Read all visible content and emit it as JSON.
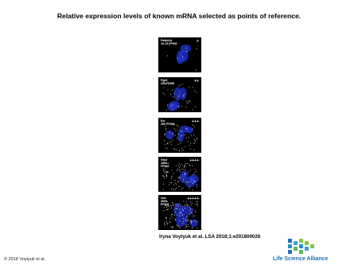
{
  "title": "Relative expression levels of known mRNA selected as points of reference.",
  "panels": [
    {
      "lines": [
        "Pafah1b",
        "10-15 FPKM"
      ],
      "level": "+"
    },
    {
      "lines": [
        "Pgk1",
        "100 FPKM"
      ],
      "level": "++"
    },
    {
      "lines": [
        "Ezr",
        "250 FPKM"
      ],
      "level": "+++"
    },
    {
      "lines": [
        "Gfod",
        "1000",
        "FPKM"
      ],
      "level": "++++"
    },
    {
      "lines": [
        "Ubc",
        "3000",
        "FPKM"
      ],
      "level": "+++++"
    }
  ],
  "citation": "Iryna Voytyuk et al. LSA 2018;1:e201800026",
  "copyright": "© 2018 Voytyuk et al.",
  "logo": "Life Science Alliance"
}
